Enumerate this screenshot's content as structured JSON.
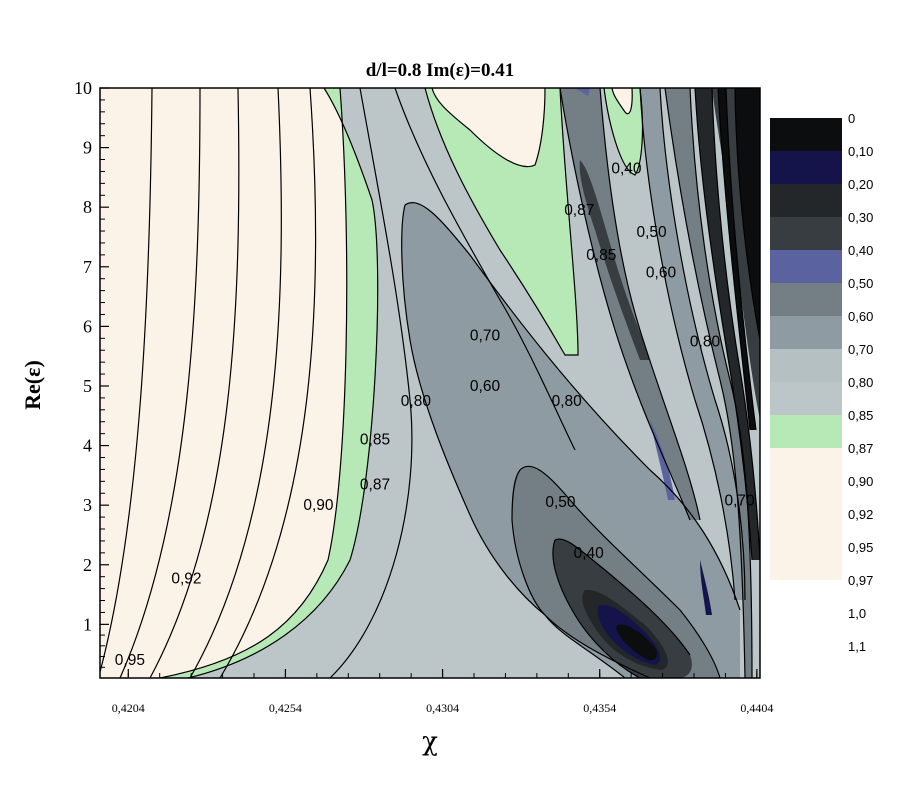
{
  "chart_data": {
    "type": "contour",
    "title": "d/l=0.8   Im(ε)=0.41",
    "xlabel": "χ",
    "ylabel": "Re(ε)",
    "xlim": [
      0.4195,
      0.4405
    ],
    "ylim": [
      0.1,
      10
    ],
    "x_ticks": [
      {
        "value": 0.4204,
        "label": "0,4204"
      },
      {
        "value": 0.4254,
        "label": "0,4254"
      },
      {
        "value": 0.4304,
        "label": "0,4304"
      },
      {
        "value": 0.4354,
        "label": "0,4354"
      },
      {
        "value": 0.4404,
        "label": "0,4404"
      }
    ],
    "y_ticks": [
      {
        "value": 1,
        "label": "1"
      },
      {
        "value": 2,
        "label": "2"
      },
      {
        "value": 3,
        "label": "3"
      },
      {
        "value": 4,
        "label": "4"
      },
      {
        "value": 5,
        "label": "5"
      },
      {
        "value": 6,
        "label": "6"
      },
      {
        "value": 7,
        "label": "7"
      },
      {
        "value": 8,
        "label": "8"
      },
      {
        "value": 9,
        "label": "9"
      },
      {
        "value": 10,
        "label": "10"
      }
    ],
    "levels": [
      {
        "label": "0",
        "color": "#0b0d0e"
      },
      {
        "label": "0,10",
        "color": "#14144a"
      },
      {
        "label": "0,20",
        "color": "#23272a"
      },
      {
        "label": "0,30",
        "color": "#383d42"
      },
      {
        "label": "0,40",
        "color": "#5a63a0"
      },
      {
        "label": "0,50",
        "color": "#737f85"
      },
      {
        "label": "0,60",
        "color": "#8f9ba3"
      },
      {
        "label": "0,70",
        "color": "#b5c0c3"
      },
      {
        "label": "0,80",
        "color": "#bcc6c9"
      },
      {
        "label": "0,85",
        "color": "#b6e9b6"
      },
      {
        "label": "0,87",
        "color": "#fcf3e8"
      },
      {
        "label": "0,90",
        "color": "#fcf3e8"
      },
      {
        "label": "0,92",
        "color": "#fcf3e8"
      },
      {
        "label": "0,95",
        "color": "#fcf3e8"
      },
      {
        "label": "0,97",
        "color": null
      },
      {
        "label": "1,0",
        "color": null
      },
      {
        "label": "1,1",
        "color": null
      }
    ],
    "contour_labels": [
      {
        "text": "0,95",
        "x": 0.42045,
        "y": 0.4
      },
      {
        "text": "0,92",
        "x": 0.42225,
        "y": 1.77
      },
      {
        "text": "0,90",
        "x": 0.42645,
        "y": 3.0
      },
      {
        "text": "0,87",
        "x": 0.42825,
        "y": 3.35
      },
      {
        "text": "0,85",
        "x": 0.42825,
        "y": 4.1
      },
      {
        "text": "0,80",
        "x": 0.42955,
        "y": 4.75
      },
      {
        "text": "0,70",
        "x": 0.43175,
        "y": 5.85
      },
      {
        "text": "0,60",
        "x": 0.43175,
        "y": 5.0
      },
      {
        "text": "0,80",
        "x": 0.43435,
        "y": 4.75
      },
      {
        "text": "0,50",
        "x": 0.43415,
        "y": 3.05
      },
      {
        "text": "0,40",
        "x": 0.43505,
        "y": 2.2
      },
      {
        "text": "0,87",
        "x": 0.43475,
        "y": 7.95
      },
      {
        "text": "0,85",
        "x": 0.43545,
        "y": 7.2
      },
      {
        "text": "0,40",
        "x": 0.43625,
        "y": 8.65
      },
      {
        "text": "0,50",
        "x": 0.43705,
        "y": 7.58
      },
      {
        "text": "0,60",
        "x": 0.43735,
        "y": 6.9
      },
      {
        "text": "0,80",
        "x": 0.43875,
        "y": 5.75
      },
      {
        "text": "0,70",
        "x": 0.43985,
        "y": 3.08
      }
    ],
    "grid": false,
    "legend_position": "right"
  }
}
